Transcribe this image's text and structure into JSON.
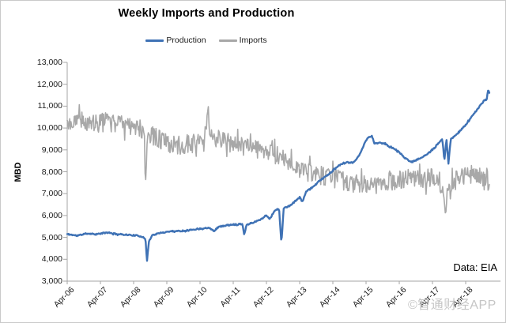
{
  "window": {
    "background": "#ffffff",
    "border_color": "#c9c9c9"
  },
  "watermark": {
    "text": "©智通财经APP",
    "color": "#c5c5c5"
  },
  "chart_data": {
    "type": "line",
    "title": "Weekly Imports and Production",
    "xlabel": "",
    "ylabel": "MBD",
    "source_note": "Data: EIA",
    "legend_position": "top-center",
    "grid": false,
    "axis_color": "#a6a6a6",
    "ylim": [
      3000,
      13000
    ],
    "ytick_step": 1000,
    "y_ticks": [
      {
        "value": 13000,
        "label": "13,000"
      },
      {
        "value": 12000,
        "label": "12,000"
      },
      {
        "value": 11000,
        "label": "11,000"
      },
      {
        "value": 10000,
        "label": "10,000"
      },
      {
        "value": 9000,
        "label": "9,000"
      },
      {
        "value": 8000,
        "label": "8,000"
      },
      {
        "value": 7000,
        "label": "7,000"
      },
      {
        "value": 6000,
        "label": "6,000"
      },
      {
        "value": 5000,
        "label": "5,000"
      },
      {
        "value": 4000,
        "label": "4,000"
      },
      {
        "value": 3000,
        "label": "3,000"
      }
    ],
    "x_unit": "years_since_Apr-06",
    "x_range_years": [
      0,
      12.72
    ],
    "x_ticks": [
      {
        "year": 0,
        "label": "Apr-06"
      },
      {
        "year": 1,
        "label": "Apr-07"
      },
      {
        "year": 2,
        "label": "Apr-08"
      },
      {
        "year": 3,
        "label": "Apr-09"
      },
      {
        "year": 4,
        "label": "Apr-10"
      },
      {
        "year": 5,
        "label": "Apr-11"
      },
      {
        "year": 6,
        "label": "Apr-12"
      },
      {
        "year": 7,
        "label": "Apr-13"
      },
      {
        "year": 8,
        "label": "Apr-14"
      },
      {
        "year": 9,
        "label": "Apr-15"
      },
      {
        "year": 10,
        "label": "Apr-16"
      },
      {
        "year": 11,
        "label": "Apr-17"
      },
      {
        "year": 12,
        "label": "Apr-18"
      }
    ],
    "sampling": "weekly",
    "series": [
      {
        "name": "Production",
        "color": "#3F72B5",
        "stroke_width": 2.4,
        "noise_amplitude_mbd": 28,
        "anchors_year_value": [
          [
            0,
            5150
          ],
          [
            0.3,
            5080
          ],
          [
            0.6,
            5180
          ],
          [
            0.9,
            5150
          ],
          [
            1.2,
            5220
          ],
          [
            1.5,
            5150
          ],
          [
            1.8,
            5120
          ],
          [
            2.1,
            5080
          ],
          [
            2.3,
            5020
          ],
          [
            2.36,
            4900
          ],
          [
            2.4,
            3880
          ],
          [
            2.46,
            4820
          ],
          [
            2.56,
            5100
          ],
          [
            2.8,
            5200
          ],
          [
            3.1,
            5280
          ],
          [
            3.5,
            5300
          ],
          [
            3.9,
            5380
          ],
          [
            4.3,
            5450
          ],
          [
            4.42,
            5280
          ],
          [
            4.55,
            5480
          ],
          [
            4.8,
            5550
          ],
          [
            5.1,
            5600
          ],
          [
            5.28,
            5620
          ],
          [
            5.33,
            5100
          ],
          [
            5.4,
            5580
          ],
          [
            5.6,
            5680
          ],
          [
            5.8,
            5800
          ],
          [
            6.0,
            6000
          ],
          [
            6.1,
            5850
          ],
          [
            6.26,
            6250
          ],
          [
            6.38,
            6300
          ],
          [
            6.45,
            4700
          ],
          [
            6.52,
            6350
          ],
          [
            6.7,
            6430
          ],
          [
            6.9,
            6700
          ],
          [
            7.0,
            6850
          ],
          [
            7.08,
            6620
          ],
          [
            7.2,
            7100
          ],
          [
            7.4,
            7300
          ],
          [
            7.6,
            7600
          ],
          [
            7.8,
            7800
          ],
          [
            8.0,
            8050
          ],
          [
            8.2,
            8300
          ],
          [
            8.4,
            8420
          ],
          [
            8.6,
            8400
          ],
          [
            8.8,
            8750
          ],
          [
            9.0,
            9450
          ],
          [
            9.1,
            9600
          ],
          [
            9.18,
            9620
          ],
          [
            9.25,
            9300
          ],
          [
            9.4,
            9320
          ],
          [
            9.55,
            9300
          ],
          [
            9.7,
            9150
          ],
          [
            9.85,
            9050
          ],
          [
            10.0,
            8900
          ],
          [
            10.15,
            8650
          ],
          [
            10.3,
            8500
          ],
          [
            10.45,
            8480
          ],
          [
            10.6,
            8600
          ],
          [
            10.8,
            8750
          ],
          [
            11.0,
            9000
          ],
          [
            11.15,
            9250
          ],
          [
            11.3,
            9480
          ],
          [
            11.36,
            8500
          ],
          [
            11.42,
            9540
          ],
          [
            11.48,
            8350
          ],
          [
            11.55,
            9500
          ],
          [
            11.7,
            9650
          ],
          [
            11.85,
            9900
          ],
          [
            12.0,
            10150
          ],
          [
            12.15,
            10450
          ],
          [
            12.3,
            10750
          ],
          [
            12.45,
            11050
          ],
          [
            12.55,
            11250
          ],
          [
            12.6,
            11300
          ],
          [
            12.63,
            11280
          ],
          [
            12.67,
            11700
          ],
          [
            12.72,
            11650
          ]
        ]
      },
      {
        "name": "Imports",
        "color": "#A8A8A8",
        "stroke_width": 1.6,
        "noise_amplitude_mbd": 430,
        "anchors_year_value": [
          [
            0,
            10250
          ],
          [
            0.3,
            10350
          ],
          [
            0.6,
            10250
          ],
          [
            0.9,
            10200
          ],
          [
            1.2,
            10300
          ],
          [
            1.5,
            10200
          ],
          [
            1.8,
            10050
          ],
          [
            2.1,
            10000
          ],
          [
            2.32,
            9900
          ],
          [
            2.36,
            7200
          ],
          [
            2.42,
            9500
          ],
          [
            2.6,
            9650
          ],
          [
            2.9,
            9350
          ],
          [
            3.2,
            9200
          ],
          [
            3.5,
            9250
          ],
          [
            3.8,
            9300
          ],
          [
            4.1,
            9500
          ],
          [
            4.22,
            10300
          ],
          [
            4.24,
            11050
          ],
          [
            4.27,
            10200
          ],
          [
            4.4,
            9600
          ],
          [
            4.7,
            9400
          ],
          [
            5.0,
            9250
          ],
          [
            5.3,
            9150
          ],
          [
            5.6,
            9250
          ],
          [
            5.9,
            9050
          ],
          [
            6.2,
            8850
          ],
          [
            6.5,
            8600
          ],
          [
            6.8,
            8400
          ],
          [
            7.1,
            8000
          ],
          [
            7.4,
            7900
          ],
          [
            7.7,
            7800
          ],
          [
            8.0,
            7700
          ],
          [
            8.3,
            7600
          ],
          [
            8.6,
            7500
          ],
          [
            8.9,
            7400
          ],
          [
            9.2,
            7300
          ],
          [
            9.5,
            7450
          ],
          [
            9.8,
            7550
          ],
          [
            10.1,
            7650
          ],
          [
            10.4,
            7750
          ],
          [
            10.7,
            7650
          ],
          [
            11.0,
            7800
          ],
          [
            11.2,
            7700
          ],
          [
            11.38,
            6400
          ],
          [
            11.46,
            7400
          ],
          [
            11.7,
            7600
          ],
          [
            12.0,
            7800
          ],
          [
            12.2,
            7750
          ],
          [
            12.35,
            7950
          ],
          [
            12.5,
            7600
          ],
          [
            12.65,
            7500
          ],
          [
            12.72,
            7450
          ]
        ]
      }
    ],
    "render": {
      "noise_seed": 11,
      "weeks_per_year": 52
    }
  }
}
